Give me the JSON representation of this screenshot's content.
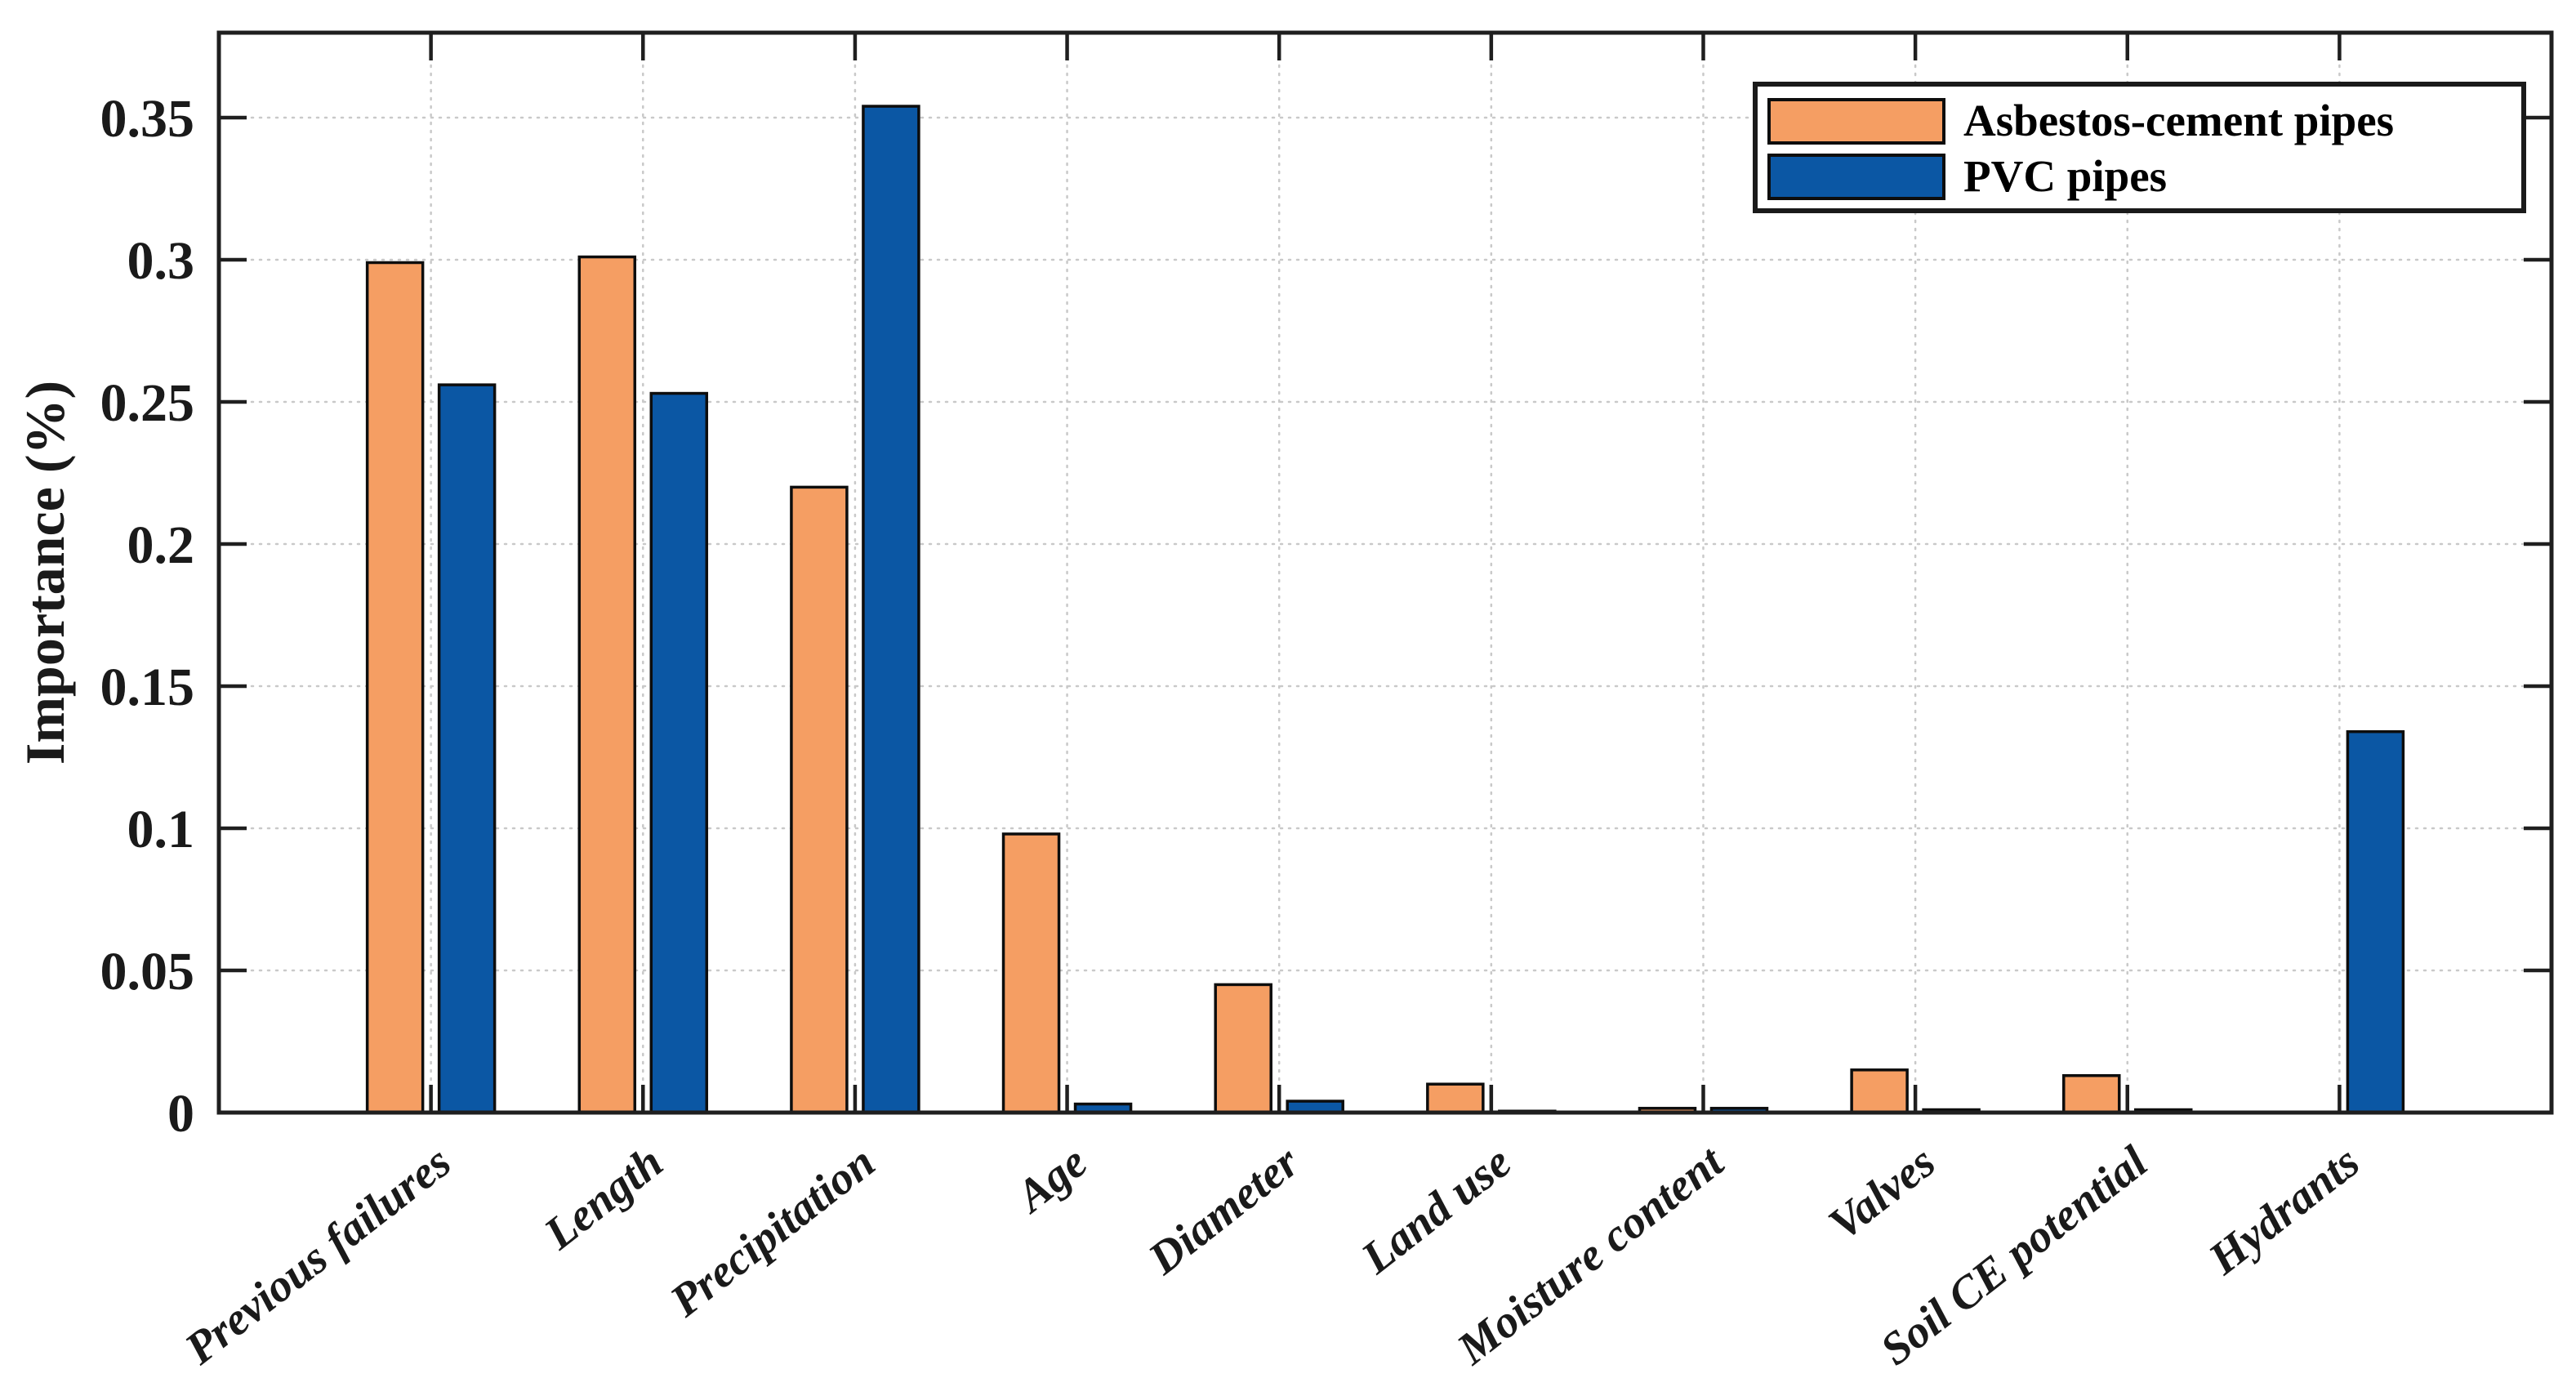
{
  "chart_data": {
    "type": "bar",
    "title": "",
    "xlabel": "",
    "ylabel": "Importance (%)",
    "categories": [
      "Previous failures",
      "Length",
      "Precipitation",
      "Age",
      "Diameter",
      "Land use",
      "Moisture content",
      "Valves",
      "Soil CE potential",
      "Hydrants"
    ],
    "series": [
      {
        "name": "Asbestos-cement pipes",
        "color": "#F59E63",
        "values": [
          0.299,
          0.301,
          0.22,
          0.098,
          0.045,
          0.01,
          0.0015,
          0.015,
          0.013,
          0
        ]
      },
      {
        "name": "PVC pipes",
        "color": "#0B57A4",
        "values": [
          0.256,
          0.253,
          0.354,
          0.003,
          0.004,
          0.0005,
          0.0015,
          0.001,
          0.001,
          0.134
        ]
      }
    ],
    "y_ticks": [
      0,
      0.05,
      0.1,
      0.15,
      0.2,
      0.25,
      0.3,
      0.35
    ],
    "ylim": [
      0,
      0.38
    ],
    "grid": true,
    "grid_style": "dotted",
    "legend_position": "top-right",
    "bar_outline_color": "#000000",
    "axis_color": "#1f1f1f",
    "background_color": "#ffffff"
  },
  "axis": {
    "ylabel": "Importance (%)",
    "y_tick_labels": [
      "0",
      "0.05",
      "0.1",
      "0.15",
      "0.2",
      "0.25",
      "0.3",
      "0.35"
    ]
  },
  "legend": {
    "items": [
      {
        "label": "Asbestos-cement pipes",
        "swatch": "orange-swatch"
      },
      {
        "label": "PVC pipes",
        "swatch": "blue-swatch"
      }
    ]
  }
}
